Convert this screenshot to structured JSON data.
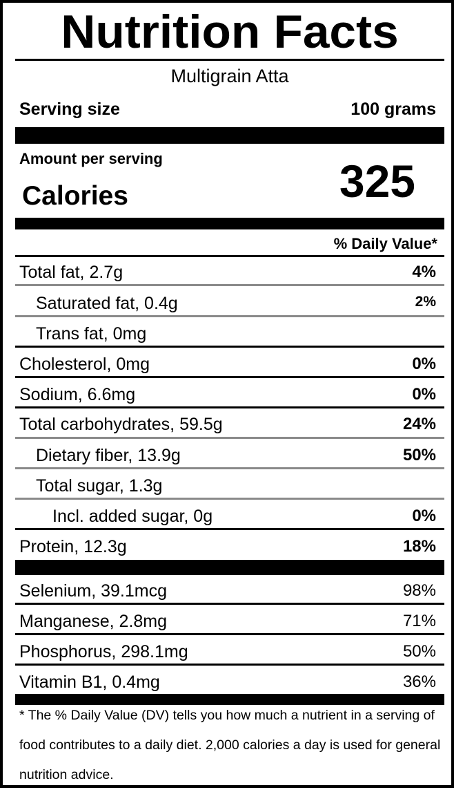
{
  "title": "Nutrition Facts",
  "product": "Multigrain Atta",
  "serving": {
    "label": "Serving size",
    "value": "100 grams"
  },
  "amount_per_serving": "Amount per serving",
  "calories": {
    "label": "Calories",
    "value": "325"
  },
  "daily_value_header": "% Daily Value*",
  "nutrients": [
    {
      "name": "Total fat, 2.7g",
      "dv": "4%"
    },
    {
      "name": "Saturated fat, 0.4g",
      "dv": "2%"
    },
    {
      "name": "Trans fat, 0mg",
      "dv": ""
    },
    {
      "name": "Cholesterol, 0mg",
      "dv": "0%"
    },
    {
      "name": "Sodium, 6.6mg",
      "dv": "0%"
    },
    {
      "name": "Total carbohydrates, 59.5g",
      "dv": "24%"
    },
    {
      "name": "Dietary fiber, 13.9g",
      "dv": "50%"
    },
    {
      "name": "Total sugar, 1.3g",
      "dv": ""
    },
    {
      "name": "Incl. added sugar, 0g",
      "dv": "0%"
    },
    {
      "name": "Protein, 12.3g",
      "dv": "18%"
    }
  ],
  "micronutrients": [
    {
      "name": "Selenium, 39.1mcg",
      "dv": "98%"
    },
    {
      "name": "Manganese, 2.8mg",
      "dv": "71%"
    },
    {
      "name": "Phosphorus, 298.1mg",
      "dv": "50%"
    },
    {
      "name": "Vitamin B1, 0.4mg",
      "dv": "36%"
    }
  ],
  "footnote": "* The % Daily Value (DV) tells you how much a nutrient in a serving of food contributes to a daily diet. 2,000 calories a day is used for general nutrition advice."
}
